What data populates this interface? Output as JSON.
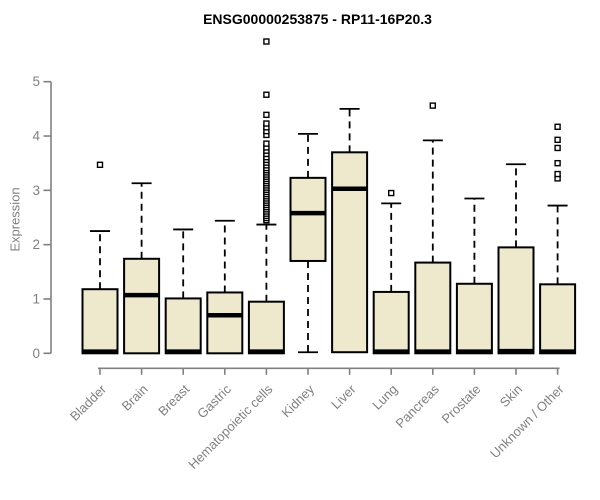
{
  "chart_data": {
    "type": "boxplot",
    "title": "ENSG00000253875 - RP11-16P20.3",
    "ylabel": "Expression",
    "xlabel": "",
    "ylim": [
      0,
      5
    ],
    "yticks": [
      0,
      1,
      2,
      3,
      4,
      5
    ],
    "grid": false,
    "legend": null,
    "categories": [
      "Bladder",
      "Brain",
      "Breast",
      "Gastric",
      "Hematopoietic cells",
      "Kidney",
      "Liver",
      "Lung",
      "Pancreas",
      "Prostate",
      "Skin",
      "Unknown / Other"
    ],
    "series": [
      {
        "name": "Bladder",
        "lo": 0,
        "q1": 0,
        "med": 0.03,
        "q3": 1.18,
        "hi": 2.25,
        "outliers": [
          3.47
        ]
      },
      {
        "name": "Brain",
        "lo": 0,
        "q1": 0,
        "med": 1.07,
        "q3": 1.74,
        "hi": 3.13,
        "outliers": []
      },
      {
        "name": "Breast",
        "lo": 0,
        "q1": 0,
        "med": 0.03,
        "q3": 1.01,
        "hi": 2.28,
        "outliers": []
      },
      {
        "name": "Gastric",
        "lo": 0,
        "q1": 0,
        "med": 0.7,
        "q3": 1.12,
        "hi": 2.44,
        "outliers": []
      },
      {
        "name": "Hematopoietic cells",
        "lo": 0,
        "q1": 0,
        "med": 0.03,
        "q3": 0.95,
        "hi": 2.37,
        "outliers": [
          2.45,
          2.49,
          2.53,
          2.57,
          2.61,
          2.65,
          2.69,
          2.73,
          2.77,
          2.81,
          2.85,
          2.89,
          2.93,
          2.97,
          3.01,
          3.05,
          3.09,
          3.13,
          3.17,
          3.21,
          3.25,
          3.29,
          3.33,
          3.37,
          3.41,
          3.46,
          3.51,
          3.56,
          3.61,
          3.67,
          3.73,
          3.79,
          3.86,
          4.02,
          4.09,
          4.16,
          4.23,
          4.39,
          4.76,
          5.74
        ]
      },
      {
        "name": "Kidney",
        "lo": 0.02,
        "q1": 1.7,
        "med": 2.58,
        "q3": 3.23,
        "hi": 4.04,
        "outliers": []
      },
      {
        "name": "Liver",
        "lo": 0.02,
        "q1": 0.02,
        "med": 3.03,
        "q3": 3.7,
        "hi": 4.5,
        "outliers": []
      },
      {
        "name": "Lung",
        "lo": 0,
        "q1": 0,
        "med": 0.03,
        "q3": 1.13,
        "hi": 2.76,
        "outliers": [
          2.95
        ]
      },
      {
        "name": "Pancreas",
        "lo": 0,
        "q1": 0,
        "med": 0.03,
        "q3": 1.67,
        "hi": 3.92,
        "outliers": [
          4.56
        ]
      },
      {
        "name": "Prostate",
        "lo": 0,
        "q1": 0,
        "med": 0.03,
        "q3": 1.28,
        "hi": 2.85,
        "outliers": []
      },
      {
        "name": "Skin",
        "lo": 0,
        "q1": 0,
        "med": 0.04,
        "q3": 1.95,
        "hi": 3.48,
        "outliers": []
      },
      {
        "name": "Unknown / Other",
        "lo": 0,
        "q1": 0,
        "med": 0.03,
        "q3": 1.27,
        "hi": 2.72,
        "outliers": [
          3.22,
          3.3,
          3.5,
          3.78,
          3.93,
          4.17
        ]
      }
    ],
    "colors": {
      "box_fill": "#EEE8CD",
      "box_border": "#000000",
      "median": "#000000",
      "whisker": "#000000",
      "outlier_stroke": "#000000",
      "outlier_fill": "#FFFFFF",
      "axis": "#808080",
      "tick_label": "#808080",
      "title": "#000000",
      "background": "#FFFFFF"
    }
  }
}
